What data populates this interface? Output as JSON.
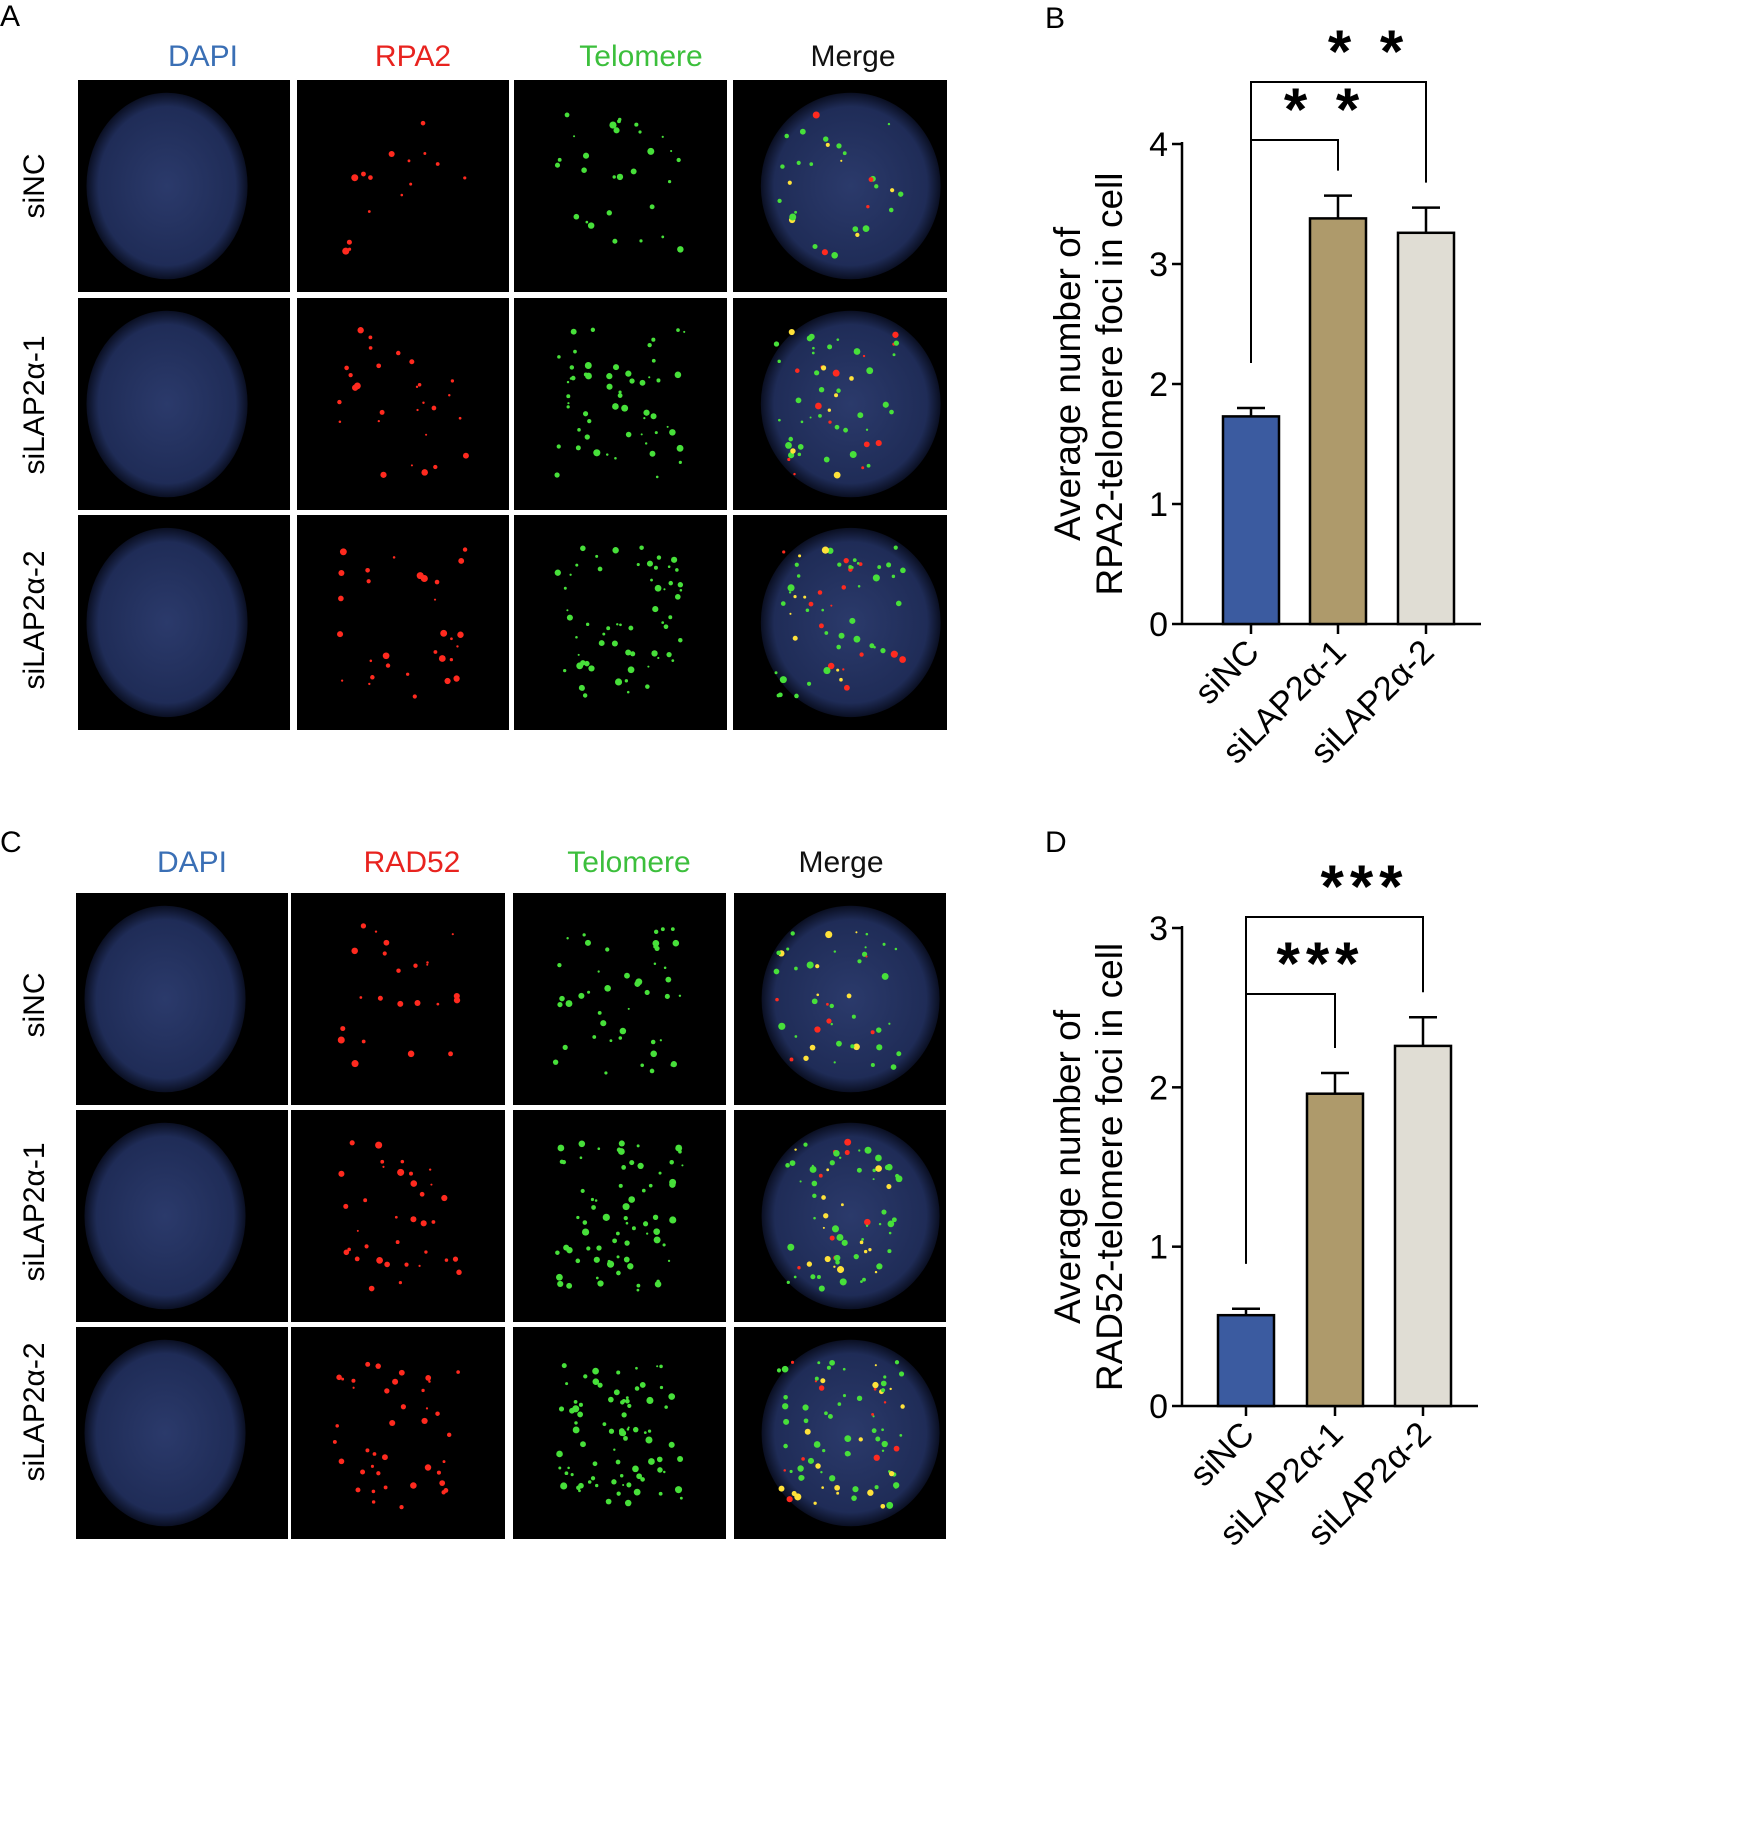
{
  "panels": {
    "A": "A",
    "B": "B",
    "C": "C",
    "D": "D"
  },
  "panel_a": {
    "columns": [
      "DAPI",
      "RPA2",
      "Telomere",
      "Merge"
    ],
    "rows": [
      "siNC",
      "siLAP2α-1",
      "siLAP2α-2"
    ]
  },
  "panel_c": {
    "columns": [
      "DAPI",
      "RAD52",
      "Telomere",
      "Merge"
    ],
    "rows": [
      "siNC",
      "siLAP2α-1",
      "siLAP2α-2"
    ]
  },
  "colors": {
    "dapi": "#3a6fb5",
    "red": "#e8231f",
    "green": "#3cbf3c",
    "merge": "#111111",
    "bar_sinc": "#3b5ba0",
    "bar_si1": "#ae9a6b",
    "bar_si2": "#e0ddd4"
  },
  "chart_data": [
    {
      "type": "bar",
      "categories": [
        "siNC",
        "siLAP2α-1",
        "siLAP2α-2"
      ],
      "values": [
        1.73,
        3.38,
        3.26
      ],
      "errors": [
        0.07,
        0.19,
        0.21
      ],
      "ylabel_line1": "Average number of",
      "ylabel_line2": "RPA2-telomere foci in cell",
      "ylim": [
        0,
        4
      ],
      "yticks": [
        0,
        1,
        2,
        3,
        4
      ],
      "significance": [
        {
          "from": 0,
          "to": 1,
          "label": "* *"
        },
        {
          "from": 0,
          "to": 2,
          "label": "* *"
        }
      ]
    },
    {
      "type": "bar",
      "categories": [
        "siNC",
        "siLAP2α-1",
        "siLAP2α-2"
      ],
      "values": [
        0.57,
        1.96,
        2.26
      ],
      "errors": [
        0.04,
        0.13,
        0.18
      ],
      "ylabel_line1": "Average number of",
      "ylabel_line2": "RAD52-telomere foci in cell",
      "ylim": [
        0,
        3
      ],
      "yticks": [
        0,
        1,
        2,
        3
      ],
      "significance": [
        {
          "from": 0,
          "to": 1,
          "label": "***"
        },
        {
          "from": 0,
          "to": 2,
          "label": "***"
        }
      ]
    }
  ]
}
